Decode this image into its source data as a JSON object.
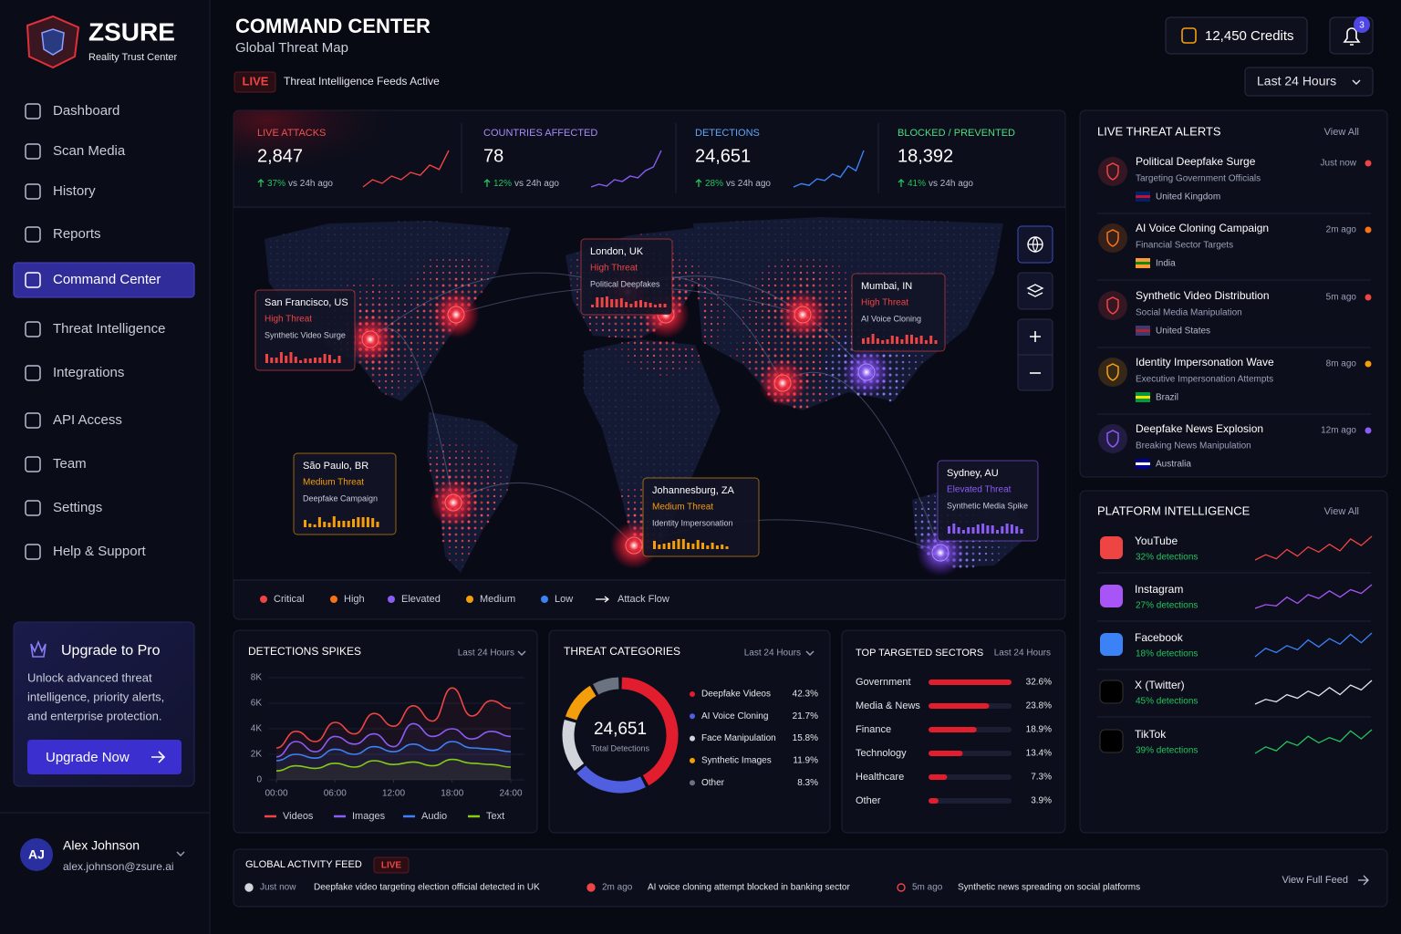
{
  "brand": {
    "name": "ZSURE",
    "tagline": "Reality Trust Center"
  },
  "nav": [
    {
      "label": "Dashboard"
    },
    {
      "label": "Scan Media"
    },
    {
      "label": "History"
    },
    {
      "label": "Reports"
    },
    {
      "label": "Command Center"
    },
    {
      "label": "Threat Intelligence"
    },
    {
      "label": "Integrations"
    },
    {
      "label": "API Access"
    },
    {
      "label": "Team"
    },
    {
      "label": "Settings"
    },
    {
      "label": "Help & Support"
    }
  ],
  "active_nav": 4,
  "upgrade": {
    "title": "Upgrade to Pro",
    "lines": [
      "Unlock advanced threat",
      "intelligence, priority alerts,",
      "and enterprise protection."
    ],
    "button": "Upgrade Now"
  },
  "user": {
    "initials": "AJ",
    "name": "Alex Johnson",
    "email": "alex.johnson@zsure.ai"
  },
  "header": {
    "title": "COMMAND CENTER",
    "subtitle": "Global Threat Map",
    "live": "LIVE",
    "status": "Threat Intelligence Feeds Active",
    "credits": "12,450 Credits",
    "notifications": 3,
    "range": "Last 24 Hours"
  },
  "stats": [
    {
      "label": "LIVE ATTACKS",
      "value": "2,847",
      "change": "37%",
      "note": "vs 24h ago",
      "color": "#ef4444",
      "label_color": "#f05252",
      "trend": [
        2,
        3,
        2.5,
        3.5,
        3,
        4,
        3.6,
        5,
        4.4,
        7
      ]
    },
    {
      "label": "COUNTRIES AFFECTED",
      "value": "78",
      "change": "12%",
      "note": "vs 24h ago",
      "color": "#8b5cf6",
      "label_color": "#a78bfa",
      "trend": [
        2,
        2.3,
        2.1,
        2.8,
        2.6,
        3.2,
        3,
        3.8,
        4.2,
        6
      ]
    },
    {
      "label": "DETECTIONS",
      "value": "24,651",
      "change": "28%",
      "note": "vs 24h ago",
      "color": "#3b82f6",
      "label_color": "#60a5fa",
      "trend": [
        2,
        2.4,
        2.2,
        3,
        2.8,
        3.6,
        3.2,
        4.6,
        4,
        6.5
      ]
    },
    {
      "label": "BLOCKED / PREVENTED",
      "value": "18,392",
      "change": "41%",
      "note": "vs 24h ago",
      "color": "#22c55e",
      "label_color": "#4ade80"
    }
  ],
  "map": {
    "popups": [
      {
        "city": "San Francisco, US",
        "level": "High Threat",
        "desc": "Synthetic Video Surge",
        "color": "#ef4444"
      },
      {
        "city": "London, UK",
        "level": "High Threat",
        "desc": "Political Deepfakes",
        "color": "#ef4444"
      },
      {
        "city": "Mumbai, IN",
        "level": "High Threat",
        "desc": "AI Voice Cloning",
        "color": "#ef4444"
      },
      {
        "city": "São Paulo, BR",
        "level": "Medium Threat",
        "desc": "Deepfake Campaign",
        "color": "#f59e0b"
      },
      {
        "city": "Johannesburg, ZA",
        "level": "Medium Threat",
        "desc": "Identity Impersonation",
        "color": "#f59e0b"
      },
      {
        "city": "Sydney, AU",
        "level": "Elevated Threat",
        "desc": "Synthetic Media Spike",
        "color": "#8b5cf6"
      }
    ],
    "legend": [
      {
        "name": "Critical",
        "color": "#ef4444"
      },
      {
        "name": "High",
        "color": "#f97316"
      },
      {
        "name": "Elevated",
        "color": "#8b5cf6"
      },
      {
        "name": "Medium",
        "color": "#f59e0b"
      },
      {
        "name": "Low",
        "color": "#3b82f6"
      },
      {
        "name": "Attack Flow"
      }
    ]
  },
  "alerts": {
    "title": "LIVE THREAT ALERTS",
    "view_all": "View All",
    "items": [
      {
        "title": "Political Deepfake Surge",
        "subtitle": "Targeting Government Officials",
        "country": "United Kingdom",
        "time": "Just now",
        "color": "#ef4444",
        "flag": [
          "#012169",
          "#c8102e"
        ]
      },
      {
        "title": "AI Voice Cloning Campaign",
        "subtitle": "Financial Sector Targets",
        "country": "India",
        "time": "2m ago",
        "color": "#f97316",
        "flag": [
          "#ff9933",
          "#138808"
        ]
      },
      {
        "title": "Synthetic Video Distribution",
        "subtitle": "Social Media Manipulation",
        "country": "United States",
        "time": "5m ago",
        "color": "#ef4444",
        "flag": [
          "#3c3b6e",
          "#b22234"
        ]
      },
      {
        "title": "Identity Impersonation Wave",
        "subtitle": "Executive Impersonation Attempts",
        "country": "Brazil",
        "time": "8m ago",
        "color": "#f59e0b",
        "flag": [
          "#009c3b",
          "#ffdf00"
        ]
      },
      {
        "title": "Deepfake News Explosion",
        "subtitle": "Breaking News Manipulation",
        "country": "Australia",
        "time": "12m ago",
        "color": "#8b5cf6",
        "flag": [
          "#00008b",
          "#ffffff"
        ]
      }
    ]
  },
  "platforms": {
    "title": "PLATFORM INTELLIGENCE",
    "view_all": "View All",
    "items": [
      {
        "name": "YouTube",
        "change": "32% detections",
        "color": "#ef4444",
        "trend": [
          3,
          3.4,
          3.1,
          3.8,
          3.3,
          4,
          3.6,
          4.2,
          3.7,
          4.6,
          4.1,
          4.8
        ]
      },
      {
        "name": "Instagram",
        "change": "27% detections",
        "color": "#a855f7",
        "trend": [
          3,
          3.3,
          3.2,
          3.9,
          3.4,
          4.1,
          3.8,
          4.4,
          3.9,
          4.5,
          4.2,
          4.9
        ]
      },
      {
        "name": "Facebook",
        "change": "18% detections",
        "color": "#3b82f6",
        "trend": [
          3,
          3.6,
          3.3,
          3.8,
          3.5,
          4.2,
          3.7,
          4.3,
          3.9,
          4.6,
          4,
          4.7
        ]
      },
      {
        "name": "X (Twitter)",
        "change": "45% detections",
        "color": "#e5e7eb",
        "trend": [
          3,
          3.4,
          3.2,
          3.8,
          3.5,
          4.1,
          3.7,
          4.4,
          3.8,
          4.6,
          4.2,
          5
        ]
      },
      {
        "name": "TikTok",
        "change": "39% detections",
        "color": "#22c55e",
        "trend": [
          3,
          3.5,
          3.2,
          3.9,
          3.6,
          4.3,
          3.8,
          4.2,
          3.9,
          4.7,
          4.1,
          4.8
        ]
      }
    ]
  },
  "detection_spikes": {
    "type": "line",
    "title": "DETECTIONS SPIKES",
    "range": "Last 24 Hours",
    "x": [
      0,
      2,
      4,
      6,
      8,
      10,
      12,
      14,
      16,
      18,
      20,
      22,
      24
    ],
    "xlim": [
      0,
      24
    ],
    "xticks": [
      {
        "value": 0,
        "label": "00:00"
      },
      {
        "value": 6,
        "label": "06:00"
      },
      {
        "value": 12,
        "label": "12:00"
      },
      {
        "value": 18,
        "label": "18:00"
      },
      {
        "value": 24,
        "label": "24:00"
      }
    ],
    "ylim": [
      0,
      8000
    ],
    "yticks": [
      0,
      {
        "value": 2000,
        "label": "2K"
      },
      {
        "value": 4000,
        "label": "4K"
      },
      {
        "value": 6000,
        "label": "6K"
      },
      {
        "value": 8000,
        "label": "8K"
      }
    ],
    "series": [
      {
        "name": "Videos",
        "color": "#ef4444",
        "values": [
          2500,
          3800,
          3000,
          4500,
          3600,
          5200,
          4200,
          5800,
          4600,
          7200,
          5000,
          6200,
          5600
        ]
      },
      {
        "name": "Images",
        "color": "#8b5cf6",
        "values": [
          1800,
          3000,
          2200,
          3400,
          2800,
          3600,
          2600,
          4400,
          3400,
          4000,
          3200,
          3800,
          3400
        ]
      },
      {
        "name": "Audio",
        "color": "#3b82f6",
        "values": [
          1500,
          2000,
          1700,
          2400,
          2000,
          2600,
          2200,
          2800,
          2300,
          3000,
          2500,
          2400,
          2200
        ]
      },
      {
        "name": "Text",
        "color": "#84cc16",
        "values": [
          700,
          1100,
          900,
          1300,
          1000,
          1500,
          1200,
          1400,
          1100,
          1600,
          1300,
          1200,
          1000
        ]
      }
    ]
  },
  "threat_categories": {
    "type": "pie",
    "title": "THREAT CATEGORIES",
    "range": "Last 24 Hours",
    "total": "24,651",
    "total_label": "Total Detections",
    "categories": [
      "Deepfake Videos",
      "AI Voice Cloning",
      "Face Manipulation",
      "Synthetic Images",
      "Other"
    ],
    "values": [
      42.3,
      21.7,
      15.8,
      11.9,
      8.3
    ],
    "value_labels": [
      "42.3%",
      "21.7%",
      "15.8%",
      "11.9%",
      "8.3%"
    ],
    "colors": [
      "#e11d2e",
      "#4f5fe0",
      "#d1d5db",
      "#f59e0b",
      "#6b7280"
    ]
  },
  "sectors": {
    "type": "bar",
    "title": "TOP TARGETED SECTORS",
    "range": "Last 24 Hours",
    "categories": [
      "Government",
      "Media & News",
      "Finance",
      "Technology",
      "Healthcare",
      "Other"
    ],
    "values": [
      32.6,
      23.8,
      18.9,
      13.4,
      7.3,
      3.9
    ],
    "value_labels": [
      "32.6%",
      "23.8%",
      "18.9%",
      "13.4%",
      "7.3%",
      "3.9%"
    ],
    "color": "#e11d2e"
  },
  "feed": {
    "title": "GLOBAL ACTIVITY FEED",
    "live": "LIVE",
    "view_full": "View Full Feed",
    "items": [
      {
        "time": "Just now",
        "text": "Deepfake video targeting election official detected in UK",
        "color": "#d1d5db"
      },
      {
        "time": "2m ago",
        "text": "AI voice cloning attempt blocked in banking sector",
        "color": "#ef4444"
      },
      {
        "time": "5m ago",
        "text": "Synthetic news spreading on social platforms",
        "color": "#ef4444"
      }
    ]
  }
}
